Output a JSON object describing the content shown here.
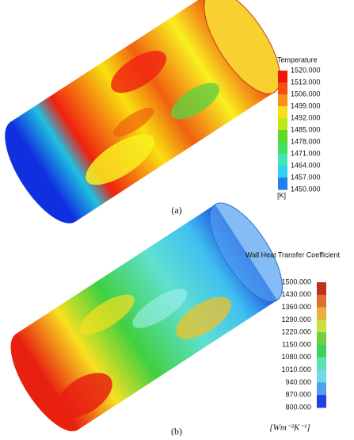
{
  "panel_a": {
    "legend_title": "Temperature",
    "legend_labels": [
      "1520.000",
      "1513.000",
      "1506.000",
      "1499.000",
      "1492.000",
      "1485.000",
      "1478.000",
      "1471.000",
      "1464.000",
      "1457.000",
      "1450.000"
    ],
    "unit": "[K]",
    "caption": "(a)"
  },
  "panel_b": {
    "legend_title": "Wall Heat Transfer Coefficient",
    "legend_labels": [
      "1500.000",
      "1430.000",
      "1360.000",
      "1290.000",
      "1220.000",
      "1150.000",
      "1080.000",
      "1010.000",
      "940.000",
      "870.000",
      "800.000"
    ],
    "unit": "[Wm⁻²K⁻¹]",
    "caption": "(b)"
  }
}
